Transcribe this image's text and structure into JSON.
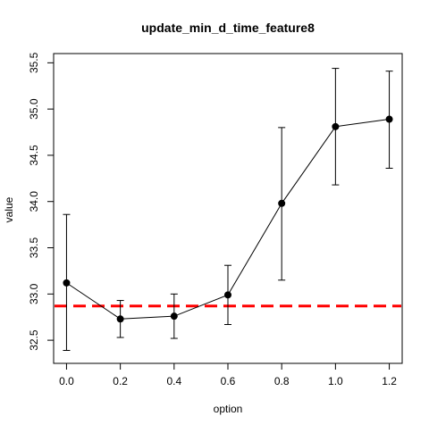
{
  "chart_data": {
    "type": "line",
    "title": "update_min_d_time_feature8",
    "xlabel": "option",
    "ylabel": "value",
    "x": [
      0.0,
      0.2,
      0.4,
      0.6,
      0.8,
      1.0,
      1.2
    ],
    "series": [
      {
        "values": [
          33.12,
          32.73,
          32.76,
          32.99,
          33.98,
          34.81,
          34.89
        ],
        "error_low": [
          32.39,
          32.53,
          32.52,
          32.67,
          33.15,
          34.18,
          34.36
        ],
        "error_high": [
          33.86,
          32.93,
          33.0,
          33.31,
          34.8,
          35.44,
          35.41
        ],
        "color": "#000000"
      }
    ],
    "reference_line": {
      "y": 32.87,
      "color": "#ff0000",
      "style": "dashed"
    },
    "x_ticks": [
      "0.0",
      "0.2",
      "0.4",
      "0.6",
      "0.8",
      "1.0",
      "1.2"
    ],
    "y_ticks": [
      "32.5",
      "33.0",
      "33.5",
      "34.0",
      "34.5",
      "35.0",
      "35.5"
    ],
    "xlim": [
      -0.048,
      1.248
    ],
    "ylim": [
      32.25,
      35.6
    ],
    "grid": false,
    "legend": "none"
  }
}
